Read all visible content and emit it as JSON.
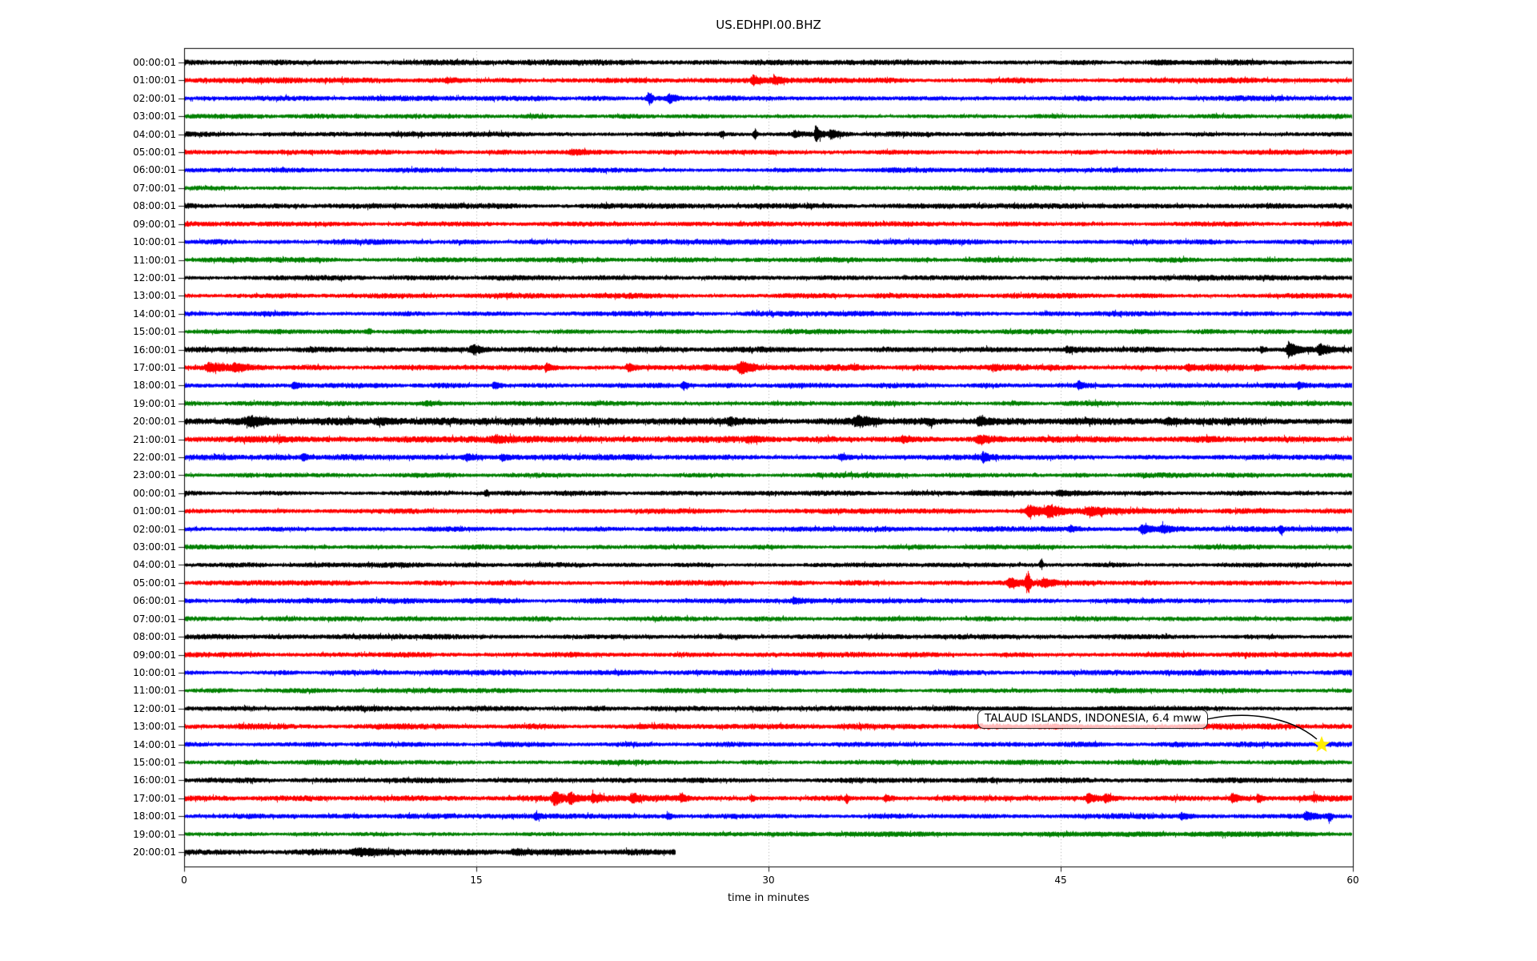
{
  "title": "US.EDHPI.00.BHZ",
  "chart_data": {
    "type": "line",
    "subtype": "helicorder-dayplot",
    "title": "US.EDHPI.00.BHZ",
    "xlabel": "time in minutes",
    "ylabel": "",
    "xlim": [
      0,
      60
    ],
    "xticks": [
      0,
      15,
      30,
      45,
      60
    ],
    "gridline_minutes": [
      15,
      30,
      45
    ],
    "grid_style": "vertical dotted",
    "trace_colors": [
      "#000000",
      "#ff0000",
      "#0000ff",
      "#008000"
    ],
    "rows": [
      {
        "label": "00:00:01",
        "amp": 3.1
      },
      {
        "label": "01:00:01",
        "amp": 3.3
      },
      {
        "label": "02:00:01",
        "amp": 3.0
      },
      {
        "label": "03:00:01",
        "amp": 2.8
      },
      {
        "label": "04:00:01",
        "amp": 3.0
      },
      {
        "label": "05:00:01",
        "amp": 3.0
      },
      {
        "label": "06:00:01",
        "amp": 2.8
      },
      {
        "label": "07:00:01",
        "amp": 2.8
      },
      {
        "label": "08:00:01",
        "amp": 3.1
      },
      {
        "label": "09:00:01",
        "amp": 3.0
      },
      {
        "label": "10:00:01",
        "amp": 3.1
      },
      {
        "label": "11:00:01",
        "amp": 3.0
      },
      {
        "label": "12:00:01",
        "amp": 3.0
      },
      {
        "label": "13:00:01",
        "amp": 3.1
      },
      {
        "label": "14:00:01",
        "amp": 3.0
      },
      {
        "label": "15:00:01",
        "amp": 2.8
      },
      {
        "label": "16:00:01",
        "amp": 3.3
      },
      {
        "label": "17:00:01",
        "amp": 3.5
      },
      {
        "label": "18:00:01",
        "amp": 3.0
      },
      {
        "label": "19:00:01",
        "amp": 3.0
      },
      {
        "label": "20:00:01",
        "amp": 4.2
      },
      {
        "label": "21:00:01",
        "amp": 3.9
      },
      {
        "label": "22:00:01",
        "amp": 3.3
      },
      {
        "label": "23:00:01",
        "amp": 2.9
      },
      {
        "label": "00:00:01",
        "amp": 3.0
      },
      {
        "label": "01:00:01",
        "amp": 3.1
      },
      {
        "label": "02:00:01",
        "amp": 3.0
      },
      {
        "label": "03:00:01",
        "amp": 2.8
      },
      {
        "label": "04:00:01",
        "amp": 2.8
      },
      {
        "label": "05:00:01",
        "amp": 3.0
      },
      {
        "label": "06:00:01",
        "amp": 3.0
      },
      {
        "label": "07:00:01",
        "amp": 2.8
      },
      {
        "label": "08:00:01",
        "amp": 3.0
      },
      {
        "label": "09:00:01",
        "amp": 3.1
      },
      {
        "label": "10:00:01",
        "amp": 3.0
      },
      {
        "label": "11:00:01",
        "amp": 2.8
      },
      {
        "label": "12:00:01",
        "amp": 3.0
      },
      {
        "label": "13:00:01",
        "amp": 3.3
      },
      {
        "label": "14:00:01",
        "amp": 3.0
      },
      {
        "label": "15:00:01",
        "amp": 2.8
      },
      {
        "label": "16:00:01",
        "amp": 3.1
      },
      {
        "label": "17:00:01",
        "amp": 3.4
      },
      {
        "label": "18:00:01",
        "amp": 3.0
      },
      {
        "label": "19:00:01",
        "amp": 2.4
      },
      {
        "label": "20:00:01",
        "amp": 3.6,
        "end": 25.2
      }
    ],
    "events": [
      {
        "r": 0,
        "t": 50.0,
        "a": 2.0,
        "w": 1.5
      },
      {
        "r": 1,
        "t": 13.5,
        "a": 2.0,
        "w": 0.6
      },
      {
        "r": 1,
        "t": 29.2,
        "a": 4.5,
        "w": 0.35
      },
      {
        "r": 1,
        "t": 30.3,
        "a": 4.0,
        "w": 0.4
      },
      {
        "r": 2,
        "t": 23.9,
        "a": 6.5,
        "w": 0.1
      },
      {
        "r": 2,
        "t": 24.9,
        "a": 4.5,
        "w": 0.3
      },
      {
        "r": 4,
        "t": 27.6,
        "a": 3.5,
        "w": 0.08
      },
      {
        "r": 4,
        "t": 29.3,
        "a": 6.5,
        "w": 0.07
      },
      {
        "r": 4,
        "t": 31.3,
        "a": 4.0,
        "w": 0.25
      },
      {
        "r": 4,
        "t": 32.4,
        "a": 10.5,
        "w": 0.18
      },
      {
        "r": 4,
        "t": 33.2,
        "a": 4.5,
        "w": 0.4
      },
      {
        "r": 5,
        "t": 20.0,
        "a": 2.0,
        "w": 0.8
      },
      {
        "r": 15,
        "t": 9.5,
        "a": 2.5,
        "w": 0.1
      },
      {
        "r": 16,
        "t": 14.8,
        "a": 6.0,
        "w": 0.45
      },
      {
        "r": 16,
        "t": 45.3,
        "a": 3.0,
        "w": 0.25
      },
      {
        "r": 16,
        "t": 55.3,
        "a": 3.5,
        "w": 0.2
      },
      {
        "r": 16,
        "t": 56.7,
        "a": 11.0,
        "w": 0.4
      },
      {
        "r": 16,
        "t": 58.3,
        "a": 6.0,
        "w": 0.5
      },
      {
        "r": 17,
        "t": 1.3,
        "a": 4.5,
        "w": 0.7
      },
      {
        "r": 17,
        "t": 2.6,
        "a": 3.5,
        "w": 0.5
      },
      {
        "r": 17,
        "t": 18.6,
        "a": 3.5,
        "w": 0.3
      },
      {
        "r": 17,
        "t": 22.8,
        "a": 4.0,
        "w": 0.35
      },
      {
        "r": 17,
        "t": 28.6,
        "a": 6.5,
        "w": 0.6
      },
      {
        "r": 17,
        "t": 41.5,
        "a": 3.0,
        "w": 0.3
      },
      {
        "r": 17,
        "t": 51.5,
        "a": 2.5,
        "w": 0.4
      },
      {
        "r": 17,
        "t": 55.0,
        "a": 2.5,
        "w": 0.3
      },
      {
        "r": 18,
        "t": 5.6,
        "a": 4.0,
        "w": 0.3
      },
      {
        "r": 18,
        "t": 15.9,
        "a": 4.5,
        "w": 0.3
      },
      {
        "r": 18,
        "t": 25.6,
        "a": 4.0,
        "w": 0.25
      },
      {
        "r": 18,
        "t": 45.9,
        "a": 4.5,
        "w": 0.3
      },
      {
        "r": 18,
        "t": 57.2,
        "a": 3.0,
        "w": 0.2
      },
      {
        "r": 19,
        "t": 12.5,
        "a": 2.0,
        "w": 0.8
      },
      {
        "r": 20,
        "t": 3.5,
        "a": 3.5,
        "w": 1.2
      },
      {
        "r": 20,
        "t": 10.0,
        "a": 3.0,
        "w": 0.8
      },
      {
        "r": 20,
        "t": 28.0,
        "a": 3.0,
        "w": 0.6
      },
      {
        "r": 20,
        "t": 34.6,
        "a": 5.0,
        "w": 0.8
      },
      {
        "r": 20,
        "t": 38.3,
        "a": 4.0,
        "w": 0.1,
        "dir": "down"
      },
      {
        "r": 20,
        "t": 40.8,
        "a": 4.5,
        "w": 0.5
      },
      {
        "r": 20,
        "t": 50.5,
        "a": 2.5,
        "w": 0.5
      },
      {
        "r": 21,
        "t": 16.0,
        "a": 3.0,
        "w": 0.7
      },
      {
        "r": 21,
        "t": 29.0,
        "a": 2.5,
        "w": 0.6
      },
      {
        "r": 21,
        "t": 36.9,
        "a": 3.0,
        "w": 0.4
      },
      {
        "r": 21,
        "t": 40.8,
        "a": 3.5,
        "w": 0.5
      },
      {
        "r": 22,
        "t": 6.1,
        "a": 4.0,
        "w": 0.3
      },
      {
        "r": 22,
        "t": 14.5,
        "a": 4.0,
        "w": 0.35
      },
      {
        "r": 22,
        "t": 16.3,
        "a": 3.5,
        "w": 0.3
      },
      {
        "r": 22,
        "t": 33.7,
        "a": 4.0,
        "w": 0.2
      },
      {
        "r": 22,
        "t": 41.0,
        "a": 5.5,
        "w": 0.25
      },
      {
        "r": 24,
        "t": 15.5,
        "a": 3.5,
        "w": 0.08
      },
      {
        "r": 24,
        "t": 41.0,
        "a": 2.0,
        "w": 2.0
      },
      {
        "r": 24,
        "t": 45.0,
        "a": 2.0,
        "w": 1.0
      },
      {
        "r": 25,
        "t": 43.4,
        "a": 6.5,
        "w": 0.7
      },
      {
        "r": 25,
        "t": 44.4,
        "a": 5.5,
        "w": 0.5
      },
      {
        "r": 25,
        "t": 46.5,
        "a": 3.5,
        "w": 0.8
      },
      {
        "r": 26,
        "t": 45.5,
        "a": 3.0,
        "w": 0.3
      },
      {
        "r": 26,
        "t": 49.2,
        "a": 5.5,
        "w": 0.5
      },
      {
        "r": 26,
        "t": 50.2,
        "a": 4.5,
        "w": 0.4
      },
      {
        "r": 26,
        "t": 56.3,
        "a": 7.0,
        "w": 0.07,
        "dir": "down"
      },
      {
        "r": 28,
        "t": 44.0,
        "a": 9.0,
        "w": 0.06,
        "dir": "up"
      },
      {
        "r": 29,
        "t": 42.4,
        "a": 5.5,
        "w": 0.45
      },
      {
        "r": 29,
        "t": 43.3,
        "a": 11.0,
        "w": 0.1
      },
      {
        "r": 29,
        "t": 44.1,
        "a": 4.5,
        "w": 0.4
      },
      {
        "r": 30,
        "t": 31.3,
        "a": 3.0,
        "w": 0.4
      },
      {
        "r": 41,
        "t": 19.0,
        "a": 8.5,
        "w": 0.45
      },
      {
        "r": 41,
        "t": 19.8,
        "a": 5.5,
        "w": 0.4
      },
      {
        "r": 41,
        "t": 21.0,
        "a": 4.5,
        "w": 0.3
      },
      {
        "r": 41,
        "t": 23.0,
        "a": 4.5,
        "w": 0.35
      },
      {
        "r": 41,
        "t": 25.5,
        "a": 3.5,
        "w": 0.2
      },
      {
        "r": 41,
        "t": 29.1,
        "a": 4.5,
        "w": 0.12
      },
      {
        "r": 41,
        "t": 34.0,
        "a": 6.0,
        "w": 0.06,
        "dir": "down"
      },
      {
        "r": 41,
        "t": 36.0,
        "a": 3.5,
        "w": 0.3
      },
      {
        "r": 41,
        "t": 46.4,
        "a": 5.5,
        "w": 0.4
      },
      {
        "r": 41,
        "t": 47.3,
        "a": 4.5,
        "w": 0.3
      },
      {
        "r": 41,
        "t": 53.8,
        "a": 5.5,
        "w": 0.35
      },
      {
        "r": 41,
        "t": 55.1,
        "a": 4.5,
        "w": 0.25
      },
      {
        "r": 41,
        "t": 58.0,
        "a": 2.5,
        "w": 0.3
      },
      {
        "r": 42,
        "t": 18.0,
        "a": 3.5,
        "w": 0.25
      },
      {
        "r": 42,
        "t": 24.8,
        "a": 3.5,
        "w": 0.2
      },
      {
        "r": 42,
        "t": 51.2,
        "a": 3.5,
        "w": 0.3
      },
      {
        "r": 42,
        "t": 57.6,
        "a": 4.5,
        "w": 0.4
      },
      {
        "r": 42,
        "t": 58.8,
        "a": 6.5,
        "w": 0.08,
        "dir": "down"
      },
      {
        "r": 43,
        "t": 45.0,
        "a": 1.0,
        "w": 12.0,
        "sym": true
      },
      {
        "r": 44,
        "t": 9.0,
        "a": 3.5,
        "w": 1.2
      },
      {
        "r": 44,
        "t": 17.0,
        "a": 2.5,
        "w": 0.8
      }
    ],
    "annotation": {
      "text": "TALAUD ISLANDS, INDONESIA, 6.4 mww",
      "row": 38,
      "minute": 58.4,
      "marker": "yellow-star",
      "marker_color": "#ffee00"
    },
    "grid_color": "#999999",
    "axis_color": "#000000"
  }
}
